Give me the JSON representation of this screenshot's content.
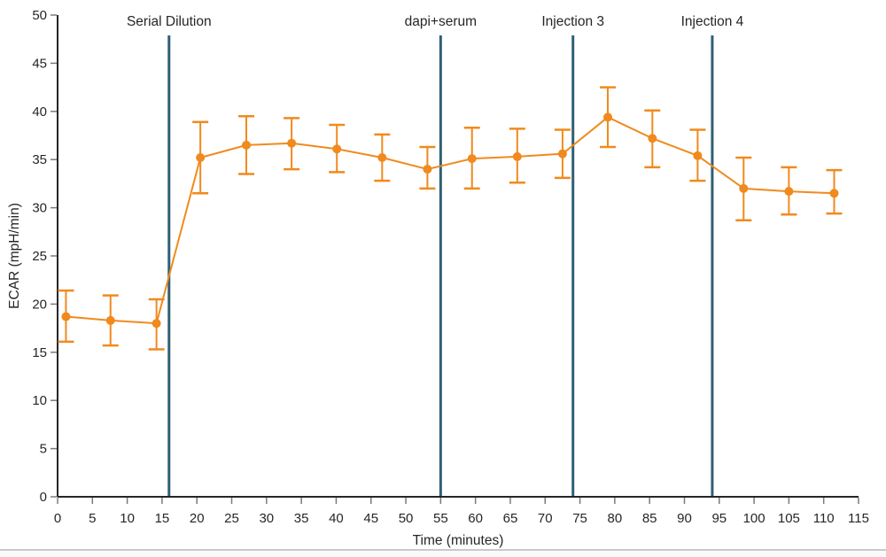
{
  "chart_data": {
    "type": "line",
    "title": "",
    "xlabel": "Time (minutes)",
    "ylabel": "ECAR (mpH/min)",
    "xlim": [
      0,
      115
    ],
    "ylim": [
      0,
      50
    ],
    "x_tick_step": 5,
    "y_tick_step": 5,
    "grid": false,
    "legend_position": "none",
    "series": [
      {
        "name": "ECAR",
        "color": "#f08a1e",
        "marker": "circle",
        "x": [
          1.2,
          7.6,
          14.2,
          20.5,
          27.1,
          33.6,
          40.1,
          46.6,
          53.1,
          59.5,
          66.0,
          72.5,
          79.0,
          85.4,
          91.9,
          98.5,
          105.0,
          111.5
        ],
        "y": [
          18.7,
          18.3,
          18.0,
          35.2,
          36.5,
          36.7,
          36.1,
          35.2,
          34.0,
          35.1,
          35.3,
          35.6,
          39.4,
          37.2,
          35.4,
          32.0,
          31.7,
          31.5
        ],
        "err_up": [
          2.7,
          2.6,
          2.5,
          3.7,
          3.0,
          2.6,
          2.5,
          2.4,
          2.3,
          3.2,
          2.9,
          2.5,
          3.1,
          2.9,
          2.7,
          3.2,
          2.5,
          2.4
        ],
        "err_down": [
          2.6,
          2.6,
          2.7,
          3.7,
          3.0,
          2.7,
          2.4,
          2.4,
          2.0,
          3.1,
          2.7,
          2.5,
          3.1,
          3.0,
          2.6,
          3.3,
          2.4,
          2.1
        ]
      }
    ],
    "event_lines": [
      {
        "label": "Serial Dilution",
        "x": 16,
        "color": "#305f75"
      },
      {
        "label": "dapi+serum",
        "x": 55,
        "color": "#305f75"
      },
      {
        "label": "Injection 3",
        "x": 74,
        "color": "#305f75"
      },
      {
        "label": "Injection 4",
        "x": 94,
        "color": "#305f75"
      }
    ]
  },
  "colors": {
    "series_orange": "#f08a1e",
    "event_line_teal": "#305f75",
    "axis_line": "#262626",
    "tick_mark": "#7a7a7a",
    "tick_label": "#262626",
    "annotation_text": "#333333",
    "bottom_divider": "#c9c9c9"
  }
}
